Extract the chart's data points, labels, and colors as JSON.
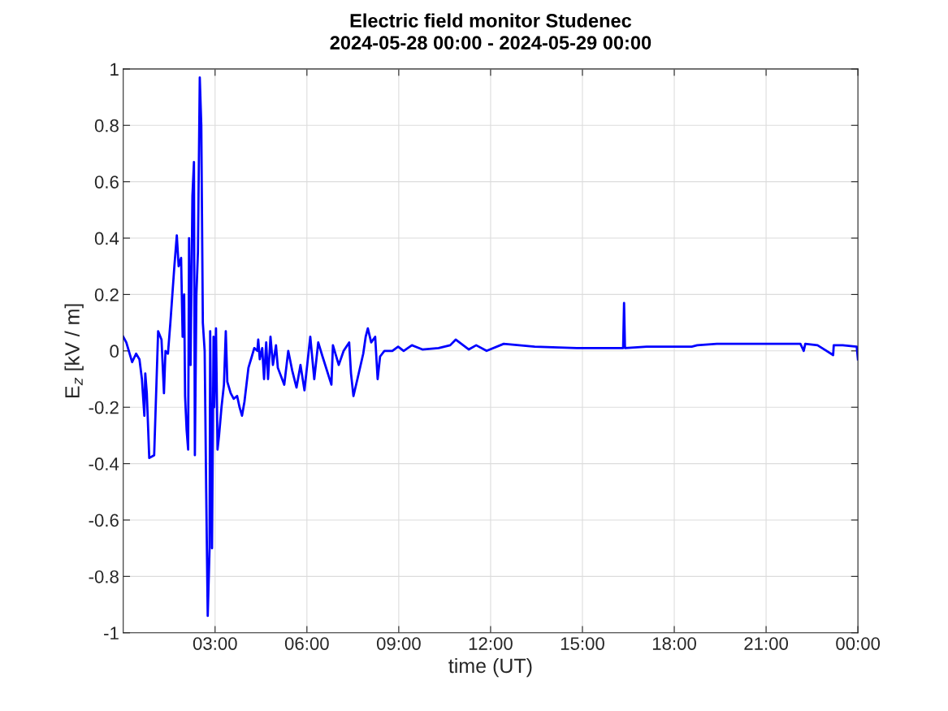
{
  "chart_data": {
    "type": "line",
    "title": "Electric field monitor Studenec",
    "subtitle": "2024-05-28 00:00 - 2024-05-29 00:00",
    "xlabel": "time (UT)",
    "ylabel": "E$_{z}$ [kV / m]",
    "xlim": [
      0,
      24
    ],
    "xticks": [
      {
        "value": 3,
        "label": "03:00"
      },
      {
        "value": 6,
        "label": "06:00"
      },
      {
        "value": 9,
        "label": "09:00"
      },
      {
        "value": 12,
        "label": "12:00"
      },
      {
        "value": 15,
        "label": "15:00"
      },
      {
        "value": 18,
        "label": "18:00"
      },
      {
        "value": 21,
        "label": "21:00"
      },
      {
        "value": 24,
        "label": "00:00"
      }
    ],
    "ylim": [
      -1,
      1
    ],
    "yticks": [
      -1,
      -0.8,
      -0.6,
      -0.4,
      -0.2,
      0,
      0.2,
      0.4,
      0.6,
      0.8,
      1
    ],
    "grid": true,
    "marker": "none",
    "line_style": "solid",
    "series": [
      {
        "color": "#0000ff",
        "x": [
          0,
          0.1,
          0.29,
          0.42,
          0.53,
          0.61,
          0.69,
          0.72,
          0.77,
          0.85,
          1.01,
          1.06,
          1.14,
          1.25,
          1.33,
          1.38,
          1.46,
          1.54,
          1.67,
          1.75,
          1.81,
          1.89,
          1.94,
          1.99,
          2.02,
          2.07,
          2.12,
          2.15,
          2.2,
          2.26,
          2.31,
          2.34,
          2.39,
          2.44,
          2.5,
          2.55,
          2.6,
          2.66,
          2.71,
          2.76,
          2.82,
          2.84,
          2.9,
          2.95,
          2.97,
          3.03,
          3.08,
          3.13,
          3.21,
          3.29,
          3.35,
          3.4,
          3.51,
          3.61,
          3.72,
          3.8,
          3.88,
          3.96,
          4.09,
          4.2,
          4.28,
          4.38,
          4.41,
          4.46,
          4.54,
          4.6,
          4.67,
          4.73,
          4.81,
          4.89,
          4.99,
          5.05,
          5.26,
          5.39,
          5.52,
          5.66,
          5.79,
          5.92,
          6.11,
          6.24,
          6.37,
          6.51,
          6.8,
          6.85,
          7.04,
          7.2,
          7.38,
          7.44,
          7.52,
          7.65,
          7.84,
          7.92,
          7.99,
          8.1,
          8.23,
          8.31,
          8.39,
          8.53,
          8.79,
          8.98,
          9.16,
          9.43,
          9.77,
          10.3,
          10.68,
          10.86,
          11.29,
          11.53,
          11.87,
          12.43,
          13.44,
          14.82,
          16.33,
          16.36,
          16.39,
          17.1,
          18.57,
          18.75,
          19.39,
          22.12,
          22.23,
          22.28,
          22.68,
          23.19,
          23.21,
          23.5,
          23.96,
          24
        ],
        "values": [
          0.05,
          0.03,
          -0.04,
          -0.01,
          -0.03,
          -0.1,
          -0.23,
          -0.08,
          -0.15,
          -0.38,
          -0.37,
          -0.2,
          0.07,
          0.04,
          -0.15,
          0.0,
          -0.01,
          0.1,
          0.3,
          0.41,
          0.3,
          0.33,
          0.05,
          0.2,
          -0.16,
          -0.28,
          -0.35,
          0.4,
          -0.05,
          0.55,
          0.67,
          -0.37,
          0.2,
          0.35,
          0.97,
          0.8,
          0.1,
          0.0,
          -0.5,
          -0.94,
          -0.7,
          0.07,
          -0.7,
          0.05,
          -0.2,
          0.08,
          -0.35,
          -0.3,
          -0.2,
          -0.12,
          0.07,
          -0.11,
          -0.15,
          -0.17,
          -0.16,
          -0.2,
          -0.23,
          -0.18,
          -0.06,
          -0.02,
          0.01,
          0.0,
          0.04,
          -0.03,
          0.01,
          -0.1,
          0.03,
          -0.1,
          0.05,
          -0.05,
          0.02,
          -0.06,
          -0.12,
          0.0,
          -0.07,
          -0.13,
          -0.05,
          -0.14,
          0.05,
          -0.1,
          0.03,
          -0.02,
          -0.12,
          0.02,
          -0.05,
          0.0,
          0.03,
          -0.08,
          -0.16,
          -0.1,
          -0.01,
          0.05,
          0.08,
          0.03,
          0.05,
          -0.1,
          -0.02,
          0.0,
          0.0,
          0.015,
          0.0,
          0.02,
          0.005,
          0.01,
          0.02,
          0.04,
          0.005,
          0.02,
          0.0,
          0.025,
          0.015,
          0.01,
          0.01,
          0.17,
          0.01,
          0.015,
          0.015,
          0.02,
          0.025,
          0.025,
          0.0,
          0.025,
          0.02,
          -0.015,
          0.02,
          0.02,
          0.015,
          -0.03
        ]
      }
    ]
  }
}
